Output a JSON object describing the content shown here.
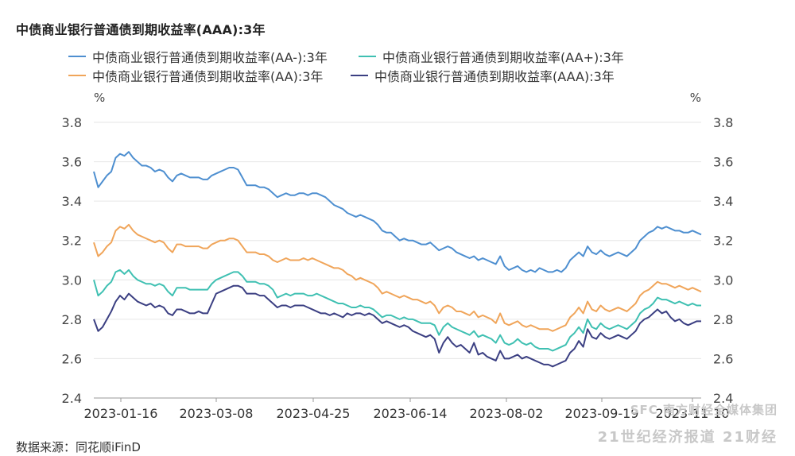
{
  "title": "中债商业银行普通债到期收益率(AAA):3年",
  "source": "数据来源：同花顺iFinD",
  "watermark": {
    "line1": "SFC 南方财经全媒体集团",
    "line2": "21世纪经济报道  21财经"
  },
  "chart_data": {
    "type": "line",
    "title": "中债商业银行普通债到期收益率(AAA):3年",
    "ylabel_left": "%",
    "ylabel_right": "%",
    "ylim": [
      2.4,
      3.8
    ],
    "yticks": [
      "3.8",
      "3.6",
      "3.4",
      "3.2",
      "3.0",
      "2.8",
      "2.6",
      "2.4"
    ],
    "xticks": [
      "2023-01-16",
      "2023-03-08",
      "2023-04-25",
      "2023-06-14",
      "2023-08-02",
      "2023-09-19",
      "2023-11-10"
    ],
    "x_start": "2023-01-16",
    "x_end": "2023-11-10",
    "grid": "horizontal",
    "legend_position": "top",
    "series": [
      {
        "name": "中债商业银行普通债到期收益率(AA-):3年",
        "color": "#4e8fd0",
        "values": [
          3.55,
          3.47,
          3.5,
          3.53,
          3.55,
          3.62,
          3.64,
          3.63,
          3.65,
          3.62,
          3.6,
          3.58,
          3.58,
          3.57,
          3.55,
          3.56,
          3.55,
          3.52,
          3.5,
          3.53,
          3.54,
          3.53,
          3.52,
          3.52,
          3.52,
          3.51,
          3.51,
          3.53,
          3.54,
          3.55,
          3.56,
          3.57,
          3.57,
          3.56,
          3.52,
          3.48,
          3.48,
          3.48,
          3.47,
          3.47,
          3.46,
          3.44,
          3.42,
          3.43,
          3.44,
          3.43,
          3.43,
          3.44,
          3.44,
          3.43,
          3.44,
          3.44,
          3.43,
          3.42,
          3.4,
          3.38,
          3.37,
          3.36,
          3.34,
          3.33,
          3.32,
          3.33,
          3.32,
          3.31,
          3.3,
          3.28,
          3.25,
          3.24,
          3.24,
          3.22,
          3.2,
          3.21,
          3.2,
          3.2,
          3.19,
          3.18,
          3.18,
          3.19,
          3.17,
          3.15,
          3.16,
          3.17,
          3.16,
          3.14,
          3.13,
          3.12,
          3.11,
          3.12,
          3.1,
          3.11,
          3.1,
          3.09,
          3.08,
          3.12,
          3.07,
          3.05,
          3.06,
          3.07,
          3.05,
          3.04,
          3.05,
          3.04,
          3.06,
          3.05,
          3.04,
          3.04,
          3.05,
          3.04,
          3.06,
          3.1,
          3.12,
          3.14,
          3.12,
          3.17,
          3.14,
          3.13,
          3.15,
          3.13,
          3.12,
          3.13,
          3.14,
          3.13,
          3.12,
          3.14,
          3.16,
          3.2,
          3.22,
          3.24,
          3.25,
          3.27,
          3.26,
          3.27,
          3.26,
          3.25,
          3.25,
          3.24,
          3.24,
          3.25,
          3.24,
          3.23
        ]
      },
      {
        "name": "中债商业银行普通债到期收益率(AA+):3年",
        "color": "#3fc0b2",
        "values": [
          3.0,
          2.92,
          2.94,
          2.97,
          2.99,
          3.04,
          3.05,
          3.03,
          3.05,
          3.02,
          3.0,
          2.99,
          2.98,
          2.98,
          2.97,
          2.98,
          2.97,
          2.94,
          2.92,
          2.96,
          2.96,
          2.96,
          2.95,
          2.95,
          2.95,
          2.95,
          2.95,
          2.98,
          3.0,
          3.01,
          3.02,
          3.03,
          3.04,
          3.04,
          3.02,
          2.99,
          2.99,
          2.99,
          2.98,
          2.98,
          2.97,
          2.95,
          2.91,
          2.92,
          2.93,
          2.92,
          2.93,
          2.93,
          2.93,
          2.92,
          2.92,
          2.93,
          2.92,
          2.91,
          2.9,
          2.89,
          2.88,
          2.88,
          2.87,
          2.86,
          2.86,
          2.87,
          2.86,
          2.86,
          2.85,
          2.83,
          2.81,
          2.82,
          2.82,
          2.81,
          2.8,
          2.81,
          2.8,
          2.8,
          2.79,
          2.78,
          2.78,
          2.78,
          2.77,
          2.72,
          2.76,
          2.78,
          2.76,
          2.75,
          2.74,
          2.73,
          2.72,
          2.74,
          2.71,
          2.72,
          2.71,
          2.7,
          2.68,
          2.72,
          2.68,
          2.67,
          2.68,
          2.7,
          2.68,
          2.67,
          2.68,
          2.66,
          2.65,
          2.65,
          2.65,
          2.64,
          2.65,
          2.66,
          2.67,
          2.71,
          2.73,
          2.76,
          2.73,
          2.8,
          2.76,
          2.75,
          2.78,
          2.76,
          2.75,
          2.76,
          2.77,
          2.76,
          2.75,
          2.77,
          2.79,
          2.83,
          2.85,
          2.86,
          2.88,
          2.91,
          2.9,
          2.9,
          2.89,
          2.88,
          2.89,
          2.88,
          2.87,
          2.88,
          2.87,
          2.87
        ]
      },
      {
        "name": "中债商业银行普通债到期收益率(AA):3年",
        "color": "#f0a55a",
        "values": [
          3.19,
          3.12,
          3.14,
          3.17,
          3.19,
          3.25,
          3.27,
          3.26,
          3.28,
          3.25,
          3.23,
          3.22,
          3.21,
          3.2,
          3.19,
          3.2,
          3.19,
          3.16,
          3.14,
          3.18,
          3.18,
          3.17,
          3.17,
          3.17,
          3.17,
          3.16,
          3.16,
          3.18,
          3.19,
          3.2,
          3.2,
          3.21,
          3.21,
          3.2,
          3.17,
          3.14,
          3.14,
          3.14,
          3.13,
          3.13,
          3.12,
          3.1,
          3.09,
          3.1,
          3.11,
          3.1,
          3.1,
          3.1,
          3.11,
          3.1,
          3.11,
          3.1,
          3.09,
          3.08,
          3.07,
          3.06,
          3.06,
          3.05,
          3.03,
          3.02,
          3.0,
          3.01,
          3.0,
          2.99,
          2.98,
          2.96,
          2.93,
          2.94,
          2.93,
          2.92,
          2.91,
          2.92,
          2.91,
          2.9,
          2.9,
          2.89,
          2.88,
          2.89,
          2.87,
          2.83,
          2.86,
          2.87,
          2.86,
          2.84,
          2.84,
          2.83,
          2.82,
          2.84,
          2.81,
          2.82,
          2.81,
          2.8,
          2.78,
          2.83,
          2.78,
          2.77,
          2.78,
          2.79,
          2.77,
          2.76,
          2.77,
          2.76,
          2.75,
          2.75,
          2.75,
          2.74,
          2.75,
          2.76,
          2.77,
          2.81,
          2.83,
          2.86,
          2.83,
          2.89,
          2.85,
          2.84,
          2.87,
          2.85,
          2.84,
          2.85,
          2.86,
          2.85,
          2.84,
          2.86,
          2.88,
          2.92,
          2.94,
          2.95,
          2.97,
          2.99,
          2.98,
          2.98,
          2.97,
          2.96,
          2.97,
          2.96,
          2.95,
          2.96,
          2.95,
          2.94
        ]
      },
      {
        "name": "中债商业银行普通债到期收益率(AAA):3年",
        "color": "#3b3f82",
        "values": [
          2.8,
          2.74,
          2.76,
          2.8,
          2.84,
          2.89,
          2.92,
          2.9,
          2.93,
          2.91,
          2.89,
          2.88,
          2.87,
          2.88,
          2.86,
          2.87,
          2.86,
          2.83,
          2.82,
          2.85,
          2.85,
          2.84,
          2.83,
          2.83,
          2.84,
          2.83,
          2.83,
          2.88,
          2.93,
          2.94,
          2.95,
          2.96,
          2.97,
          2.97,
          2.96,
          2.93,
          2.93,
          2.93,
          2.92,
          2.92,
          2.9,
          2.88,
          2.86,
          2.87,
          2.87,
          2.86,
          2.87,
          2.87,
          2.87,
          2.86,
          2.85,
          2.84,
          2.83,
          2.83,
          2.82,
          2.83,
          2.82,
          2.81,
          2.83,
          2.82,
          2.83,
          2.83,
          2.82,
          2.83,
          2.82,
          2.8,
          2.78,
          2.79,
          2.78,
          2.77,
          2.76,
          2.77,
          2.76,
          2.74,
          2.73,
          2.72,
          2.71,
          2.72,
          2.7,
          2.63,
          2.68,
          2.71,
          2.68,
          2.66,
          2.67,
          2.65,
          2.63,
          2.68,
          2.62,
          2.63,
          2.61,
          2.6,
          2.59,
          2.64,
          2.6,
          2.6,
          2.61,
          2.62,
          2.6,
          2.61,
          2.6,
          2.59,
          2.58,
          2.57,
          2.57,
          2.56,
          2.57,
          2.58,
          2.59,
          2.63,
          2.65,
          2.69,
          2.66,
          2.75,
          2.71,
          2.7,
          2.73,
          2.71,
          2.7,
          2.71,
          2.72,
          2.71,
          2.7,
          2.72,
          2.74,
          2.78,
          2.8,
          2.81,
          2.83,
          2.85,
          2.83,
          2.84,
          2.81,
          2.79,
          2.8,
          2.78,
          2.77,
          2.78,
          2.79,
          2.79
        ]
      }
    ]
  }
}
